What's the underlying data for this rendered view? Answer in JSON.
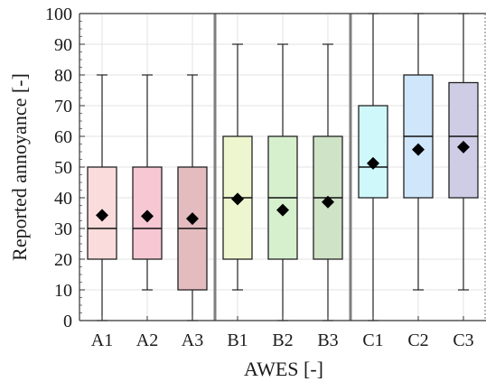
{
  "chart_data": {
    "type": "box",
    "xlabel": "AWES [-]",
    "ylabel": "Reported annoyance [-]",
    "ylim": [
      0,
      100
    ],
    "yticks": [
      0,
      10,
      20,
      30,
      40,
      50,
      60,
      70,
      80,
      90,
      100
    ],
    "grid": true,
    "group_separators_after": [
      "A3",
      "B3"
    ],
    "categories": [
      "A1",
      "A2",
      "A3",
      "B1",
      "B2",
      "B3",
      "C1",
      "C2",
      "C3"
    ],
    "boxes": [
      {
        "label": "A1",
        "whisker_low": 0,
        "q1": 20,
        "median": 30,
        "q3": 50,
        "whisker_high": 80,
        "mean": 34.3,
        "color": "#fbdcdc"
      },
      {
        "label": "A2",
        "whisker_low": 10,
        "q1": 20,
        "median": 30,
        "q3": 50,
        "whisker_high": 80,
        "mean": 34.0,
        "color": "#f6c8d3"
      },
      {
        "label": "A3",
        "whisker_low": 0,
        "q1": 10,
        "median": 30,
        "q3": 50,
        "whisker_high": 80,
        "mean": 33.2,
        "color": "#e4bcbf"
      },
      {
        "label": "B1",
        "whisker_low": 10,
        "q1": 20,
        "median": 40,
        "q3": 60,
        "whisker_high": 90,
        "mean": 39.6,
        "color": "#eef6cf"
      },
      {
        "label": "B2",
        "whisker_low": 0,
        "q1": 20,
        "median": 40,
        "q3": 60,
        "whisker_high": 90,
        "mean": 36.0,
        "color": "#d6f0ce"
      },
      {
        "label": "B3",
        "whisker_low": 0,
        "q1": 20,
        "median": 40,
        "q3": 60,
        "whisker_high": 90,
        "mean": 38.6,
        "color": "#cfe3c7"
      },
      {
        "label": "C1",
        "whisker_low": 0,
        "q1": 40,
        "median": 50,
        "q3": 70,
        "whisker_high": 100,
        "mean": 51.2,
        "color": "#cff8fa"
      },
      {
        "label": "C2",
        "whisker_low": 10,
        "q1": 40,
        "median": 60,
        "q3": 80,
        "whisker_high": 100,
        "mean": 55.7,
        "color": "#cfe6fb"
      },
      {
        "label": "C3",
        "whisker_low": 10,
        "q1": 40,
        "median": 60,
        "q3": 77.5,
        "whisker_high": 100,
        "mean": 56.5,
        "color": "#cfcde6"
      }
    ]
  }
}
